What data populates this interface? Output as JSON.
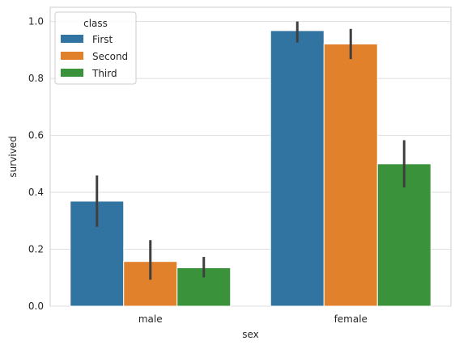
{
  "chart_data": {
    "type": "bar",
    "title": "",
    "xlabel": "sex",
    "ylabel": "survived",
    "categories": [
      "male",
      "female"
    ],
    "ylim": [
      0,
      1.05
    ],
    "yticks": [
      0.0,
      0.2,
      0.4,
      0.6,
      0.8,
      1.0
    ],
    "ytick_labels": [
      "0.0",
      "0.2",
      "0.4",
      "0.6",
      "0.8",
      "1.0"
    ],
    "grid": "horizontal",
    "legend": {
      "title": "class",
      "placement": "top-left"
    },
    "series": [
      {
        "name": "First",
        "color": "#3274a1",
        "values": [
          0.369,
          0.968
        ],
        "ci_low": [
          0.279,
          0.926
        ],
        "ci_high": [
          0.459,
          1.0
        ]
      },
      {
        "name": "Second",
        "color": "#e1812c",
        "values": [
          0.157,
          0.921
        ],
        "ci_low": [
          0.093,
          0.868
        ],
        "ci_high": [
          0.232,
          0.974
        ]
      },
      {
        "name": "Third",
        "color": "#3a923a",
        "values": [
          0.135,
          0.5
        ],
        "ci_low": [
          0.101,
          0.417
        ],
        "ci_high": [
          0.173,
          0.583
        ]
      }
    ]
  }
}
